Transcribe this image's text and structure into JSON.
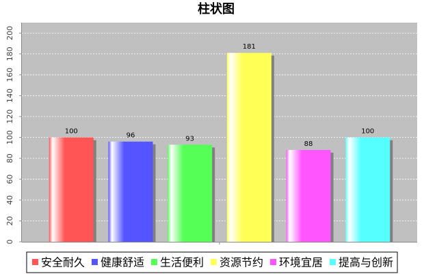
{
  "chart_data": {
    "type": "bar",
    "title": "柱状图",
    "categories": [
      null
    ],
    "series": [
      {
        "name": "安全耐久",
        "color": "#ff5555",
        "values": [
          100
        ]
      },
      {
        "name": "健康舒适",
        "color": "#5555ff",
        "values": [
          96
        ]
      },
      {
        "name": "生活便利",
        "color": "#55ff55",
        "values": [
          93
        ]
      },
      {
        "name": "资源节约",
        "color": "#ffff55",
        "values": [
          181
        ]
      },
      {
        "name": "环境宜居",
        "color": "#ff55ff",
        "values": [
          88
        ]
      },
      {
        "name": "提高与创新",
        "color": "#55ffff",
        "values": [
          100
        ]
      }
    ],
    "ylim": [
      0,
      210
    ],
    "yticks": [
      0,
      20,
      40,
      60,
      80,
      100,
      120,
      140,
      160,
      180,
      200
    ],
    "grid": true,
    "legend": "bottom"
  }
}
